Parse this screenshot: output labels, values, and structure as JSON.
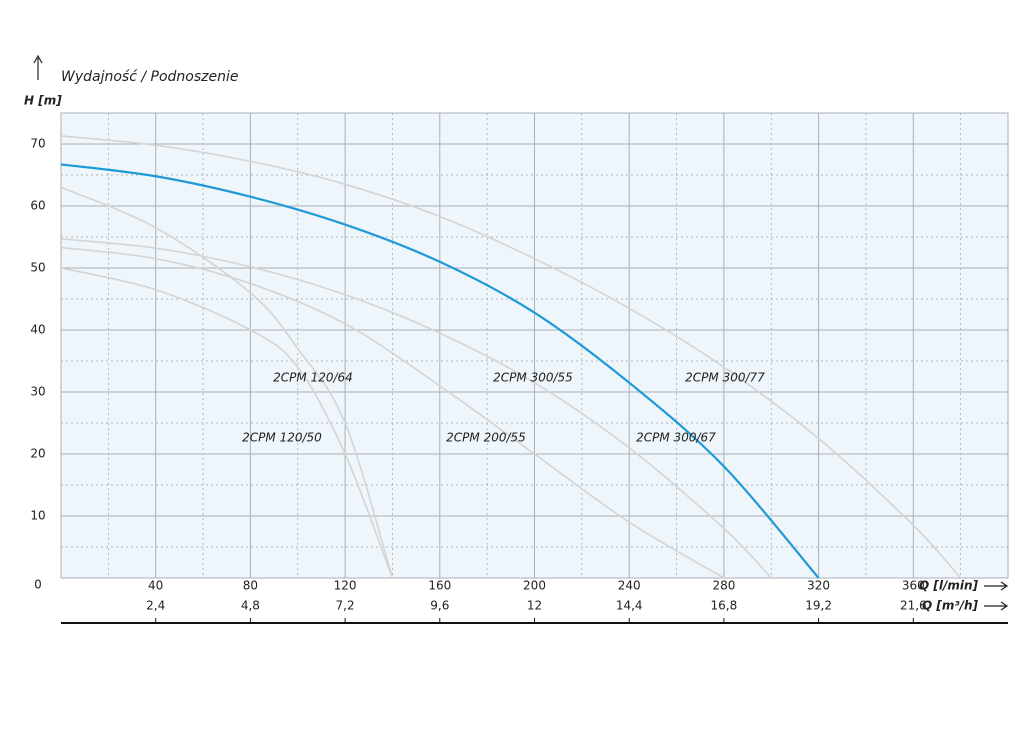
{
  "chart_data": {
    "type": "line",
    "title": "Wydajność / Podnoszenie",
    "y_label": "H [m]",
    "x_label": "Q [l/min]",
    "x2_label": "Q [m³/h]",
    "xlim": [
      0,
      400
    ],
    "ylim": [
      0,
      75
    ],
    "x2lim": [
      0,
      24
    ],
    "xticks": [
      40,
      80,
      120,
      160,
      200,
      240,
      280,
      320,
      360
    ],
    "x_minor_ticks": [
      20,
      60,
      100,
      140,
      180,
      220,
      260,
      300,
      340,
      380
    ],
    "yticks": [
      0,
      10,
      20,
      30,
      40,
      50,
      60,
      70
    ],
    "y_minor_ticks": [
      5,
      15,
      25,
      35,
      45,
      55,
      65
    ],
    "x2ticks": [
      {
        "value": 2.4,
        "label": "2,4"
      },
      {
        "value": 4.8,
        "label": "4,8"
      },
      {
        "value": 7.2,
        "label": "7,2"
      },
      {
        "value": 9.6,
        "label": "9,6"
      },
      12,
      {
        "value": 14.4,
        "label": "14,4"
      },
      {
        "value": 16.8,
        "label": "16,8"
      },
      {
        "value": 19.2,
        "label": "19,2"
      },
      {
        "value": 21.6,
        "label": "21,6"
      }
    ],
    "grid": true,
    "series": [
      {
        "name": "2CPM 300/77",
        "color": "#d4d4d4",
        "x": [
          0,
          40,
          80,
          120,
          160,
          200,
          240,
          280,
          320,
          360,
          380
        ],
        "values": [
          71.3,
          69.8,
          67.2,
          63.5,
          58.3,
          51.5,
          43.5,
          34,
          22.5,
          8.5,
          0
        ]
      },
      {
        "name": "2CPM 300/67",
        "color": "#1e9ad6",
        "x": [
          0,
          40,
          80,
          120,
          160,
          200,
          240,
          280,
          320
        ],
        "values": [
          66.7,
          64.8,
          61.5,
          57,
          51,
          42.8,
          31.5,
          18,
          0
        ]
      },
      {
        "name": "2CPM 300/55",
        "color": "#d4d4d4",
        "x": [
          0,
          40,
          80,
          120,
          160,
          200,
          240,
          280,
          300
        ],
        "values": [
          54.7,
          53.2,
          50.2,
          45.7,
          39.5,
          31.5,
          21,
          8,
          0
        ]
      },
      {
        "name": "2CPM 200/55",
        "color": "#d4d4d4",
        "x": [
          0,
          40,
          80,
          120,
          160,
          200,
          240,
          280
        ],
        "values": [
          53.3,
          51.5,
          47.5,
          41,
          31,
          20,
          9,
          0
        ]
      },
      {
        "name": "2CPM 120/64",
        "color": "#d4d4d4",
        "x": [
          0,
          40,
          80,
          100,
          120,
          140
        ],
        "values": [
          63,
          56.5,
          46,
          37,
          25,
          0
        ]
      },
      {
        "name": "2CPM 120/50",
        "color": "#d4d4d4",
        "x": [
          0,
          40,
          80,
          100,
          120,
          140
        ],
        "values": [
          50,
          46.5,
          40,
          34,
          20,
          0
        ]
      }
    ]
  }
}
